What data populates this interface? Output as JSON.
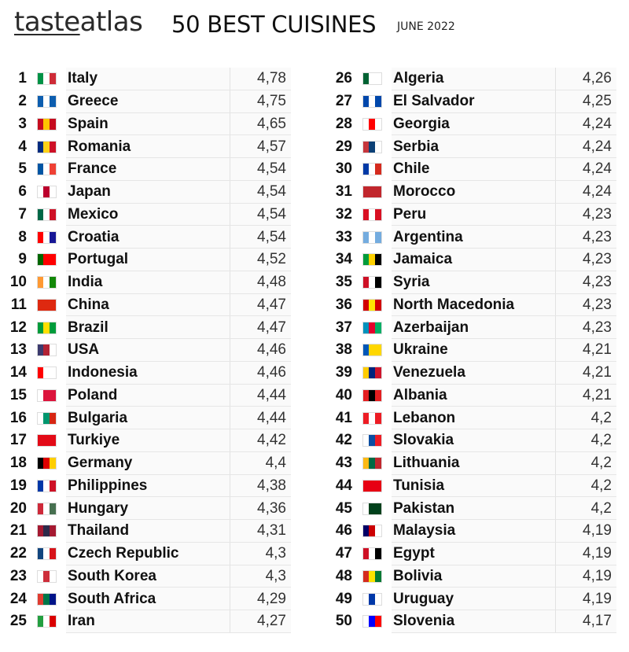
{
  "header": {
    "logo_part1": "taste",
    "logo_part2": "atlas",
    "title": "50 BEST CUISINES",
    "date": "JUNE 2022"
  },
  "left_column": [
    {
      "rank": "1",
      "country": "Italy",
      "score": "4,78",
      "flag": [
        "#009246",
        "#ffffff",
        "#ce2b37"
      ]
    },
    {
      "rank": "2",
      "country": "Greece",
      "score": "4,75",
      "flag": [
        "#0d5eaf",
        "#ffffff",
        "#0d5eaf"
      ]
    },
    {
      "rank": "3",
      "country": "Spain",
      "score": "4,65",
      "flag": [
        "#c60b1e",
        "#ffc400",
        "#c60b1e"
      ]
    },
    {
      "rank": "4",
      "country": "Romania",
      "score": "4,57",
      "flag": [
        "#002b7f",
        "#fcd116",
        "#ce1126"
      ]
    },
    {
      "rank": "5",
      "country": "France",
      "score": "4,54",
      "flag": [
        "#0055a4",
        "#ffffff",
        "#ef4135"
      ]
    },
    {
      "rank": "6",
      "country": "Japan",
      "score": "4,54",
      "flag": [
        "#ffffff",
        "#bc002d",
        "#ffffff"
      ]
    },
    {
      "rank": "7",
      "country": "Mexico",
      "score": "4,54",
      "flag": [
        "#006847",
        "#ffffff",
        "#ce1126"
      ]
    },
    {
      "rank": "8",
      "country": "Croatia",
      "score": "4,54",
      "flag": [
        "#ff0000",
        "#ffffff",
        "#171796"
      ]
    },
    {
      "rank": "9",
      "country": "Portugal",
      "score": "4,52",
      "flag": [
        "#006600",
        "#ff0000",
        "#ff0000"
      ]
    },
    {
      "rank": "10",
      "country": "India",
      "score": "4,48",
      "flag": [
        "#ff9933",
        "#ffffff",
        "#138808"
      ]
    },
    {
      "rank": "11",
      "country": "China",
      "score": "4,47",
      "flag": [
        "#de2910",
        "#de2910",
        "#de2910"
      ]
    },
    {
      "rank": "12",
      "country": "Brazil",
      "score": "4,47",
      "flag": [
        "#009c3b",
        "#ffdf00",
        "#009c3b"
      ]
    },
    {
      "rank": "13",
      "country": "USA",
      "score": "4,46",
      "flag": [
        "#3c3b6e",
        "#b22234",
        "#ffffff"
      ]
    },
    {
      "rank": "14",
      "country": "Indonesia",
      "score": "4,46",
      "flag": [
        "#ff0000",
        "#ffffff",
        "#ffffff"
      ]
    },
    {
      "rank": "15",
      "country": "Poland",
      "score": "4,44",
      "flag": [
        "#ffffff",
        "#dc143c",
        "#dc143c"
      ]
    },
    {
      "rank": "16",
      "country": "Bulgaria",
      "score": "4,44",
      "flag": [
        "#ffffff",
        "#00966e",
        "#d62612"
      ]
    },
    {
      "rank": "17",
      "country": "Turkiye",
      "score": "4,42",
      "flag": [
        "#e30a17",
        "#e30a17",
        "#e30a17"
      ]
    },
    {
      "rank": "18",
      "country": "Germany",
      "score": "4,4",
      "flag": [
        "#000000",
        "#dd0000",
        "#ffce00"
      ]
    },
    {
      "rank": "19",
      "country": "Philippines",
      "score": "4,38",
      "flag": [
        "#0038a8",
        "#ffffff",
        "#ce1126"
      ]
    },
    {
      "rank": "20",
      "country": "Hungary",
      "score": "4,36",
      "flag": [
        "#ce2939",
        "#ffffff",
        "#477050"
      ]
    },
    {
      "rank": "21",
      "country": "Thailand",
      "score": "4,31",
      "flag": [
        "#a51931",
        "#2d2a4a",
        "#a51931"
      ]
    },
    {
      "rank": "22",
      "country": "Czech Republic",
      "score": "4,3",
      "flag": [
        "#11457e",
        "#ffffff",
        "#d7141a"
      ]
    },
    {
      "rank": "23",
      "country": "South Korea",
      "score": "4,3",
      "flag": [
        "#ffffff",
        "#cd2e3a",
        "#ffffff"
      ]
    },
    {
      "rank": "24",
      "country": "South Africa",
      "score": "4,29",
      "flag": [
        "#e03c31",
        "#007749",
        "#001489"
      ]
    },
    {
      "rank": "25",
      "country": "Iran",
      "score": "4,27",
      "flag": [
        "#239f40",
        "#ffffff",
        "#da0000"
      ]
    }
  ],
  "right_column": [
    {
      "rank": "26",
      "country": "Algeria",
      "score": "4,26",
      "flag": [
        "#006233",
        "#ffffff",
        "#ffffff"
      ]
    },
    {
      "rank": "27",
      "country": "El Salvador",
      "score": "4,25",
      "flag": [
        "#0047ab",
        "#ffffff",
        "#0047ab"
      ]
    },
    {
      "rank": "28",
      "country": "Georgia",
      "score": "4,24",
      "flag": [
        "#ffffff",
        "#ff0000",
        "#ffffff"
      ]
    },
    {
      "rank": "29",
      "country": "Serbia",
      "score": "4,24",
      "flag": [
        "#c6363c",
        "#0c4076",
        "#ffffff"
      ]
    },
    {
      "rank": "30",
      "country": "Chile",
      "score": "4,24",
      "flag": [
        "#0039a6",
        "#ffffff",
        "#d52b1e"
      ]
    },
    {
      "rank": "31",
      "country": "Morocco",
      "score": "4,24",
      "flag": [
        "#c1272d",
        "#c1272d",
        "#c1272d"
      ]
    },
    {
      "rank": "32",
      "country": "Peru",
      "score": "4,23",
      "flag": [
        "#d91023",
        "#ffffff",
        "#d91023"
      ]
    },
    {
      "rank": "33",
      "country": "Argentina",
      "score": "4,23",
      "flag": [
        "#74acdf",
        "#ffffff",
        "#74acdf"
      ]
    },
    {
      "rank": "34",
      "country": "Jamaica",
      "score": "4,23",
      "flag": [
        "#009b3a",
        "#fed100",
        "#000000"
      ]
    },
    {
      "rank": "35",
      "country": "Syria",
      "score": "4,23",
      "flag": [
        "#ce1126",
        "#ffffff",
        "#000000"
      ]
    },
    {
      "rank": "36",
      "country": "North Macedonia",
      "score": "4,23",
      "flag": [
        "#d20000",
        "#ffe600",
        "#d20000"
      ]
    },
    {
      "rank": "37",
      "country": "Azerbaijan",
      "score": "4,23",
      "flag": [
        "#0092bc",
        "#e4002b",
        "#00af66"
      ]
    },
    {
      "rank": "38",
      "country": "Ukraine",
      "score": "4,21",
      "flag": [
        "#0057b7",
        "#ffd700",
        "#ffd700"
      ]
    },
    {
      "rank": "39",
      "country": "Venezuela",
      "score": "4,21",
      "flag": [
        "#ffcc00",
        "#00247d",
        "#cf142b"
      ]
    },
    {
      "rank": "40",
      "country": "Albania",
      "score": "4,21",
      "flag": [
        "#e41e20",
        "#000000",
        "#e41e20"
      ]
    },
    {
      "rank": "41",
      "country": "Lebanon",
      "score": "4,2",
      "flag": [
        "#ed1c24",
        "#ffffff",
        "#ed1c24"
      ]
    },
    {
      "rank": "42",
      "country": "Slovakia",
      "score": "4,2",
      "flag": [
        "#ffffff",
        "#0b4ea2",
        "#ee1c25"
      ]
    },
    {
      "rank": "43",
      "country": "Lithuania",
      "score": "4,2",
      "flag": [
        "#fdb913",
        "#006a44",
        "#c1272d"
      ]
    },
    {
      "rank": "44",
      "country": "Tunisia",
      "score": "4,2",
      "flag": [
        "#e70013",
        "#e70013",
        "#e70013"
      ]
    },
    {
      "rank": "45",
      "country": "Pakistan",
      "score": "4,2",
      "flag": [
        "#ffffff",
        "#01411c",
        "#01411c"
      ]
    },
    {
      "rank": "46",
      "country": "Malaysia",
      "score": "4,19",
      "flag": [
        "#010066",
        "#cc0001",
        "#ffffff"
      ]
    },
    {
      "rank": "47",
      "country": "Egypt",
      "score": "4,19",
      "flag": [
        "#ce1126",
        "#ffffff",
        "#000000"
      ]
    },
    {
      "rank": "48",
      "country": "Bolivia",
      "score": "4,19",
      "flag": [
        "#d52b1e",
        "#f9e300",
        "#007934"
      ]
    },
    {
      "rank": "49",
      "country": "Uruguay",
      "score": "4,19",
      "flag": [
        "#ffffff",
        "#0038a8",
        "#ffffff"
      ]
    },
    {
      "rank": "50",
      "country": "Slovenia",
      "score": "4,17",
      "flag": [
        "#ffffff",
        "#0000ff",
        "#ff0000"
      ]
    }
  ]
}
